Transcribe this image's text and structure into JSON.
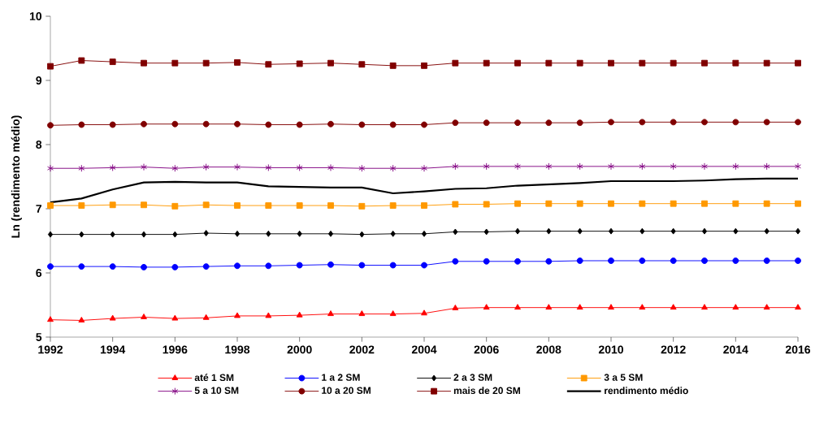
{
  "chart_data": {
    "type": "line",
    "ylabel": "Ln (rendimento médio)",
    "x": [
      1992,
      1993,
      1994,
      1995,
      1996,
      1997,
      1998,
      1999,
      2000,
      2001,
      2002,
      2003,
      2004,
      2005,
      2006,
      2007,
      2008,
      2009,
      2010,
      2011,
      2012,
      2013,
      2014,
      2015,
      2016
    ],
    "xlim": [
      1992,
      2016
    ],
    "xticks": [
      1992,
      1994,
      1996,
      1998,
      2000,
      2002,
      2004,
      2006,
      2008,
      2010,
      2012,
      2014,
      2016
    ],
    "ylim": [
      5,
      10
    ],
    "yticks": [
      5,
      6,
      7,
      8,
      9,
      10
    ],
    "grid": false,
    "legend": "bottom",
    "series": [
      {
        "name": "até 1 SM",
        "color": "#ff0000",
        "marker": "triangle",
        "values": [
          5.27,
          5.26,
          5.29,
          5.31,
          5.29,
          5.3,
          5.33,
          5.33,
          5.34,
          5.36,
          5.36,
          5.36,
          5.37,
          5.45,
          5.46,
          5.46,
          5.46,
          5.46,
          5.46,
          5.46,
          5.46,
          5.46,
          5.46,
          5.46,
          5.46
        ]
      },
      {
        "name": "1 a 2 SM",
        "color": "#0000ff",
        "marker": "circle",
        "values": [
          6.1,
          6.1,
          6.1,
          6.09,
          6.09,
          6.1,
          6.11,
          6.11,
          6.12,
          6.13,
          6.12,
          6.12,
          6.12,
          6.18,
          6.18,
          6.18,
          6.18,
          6.19,
          6.19,
          6.19,
          6.19,
          6.19,
          6.19,
          6.19,
          6.19
        ]
      },
      {
        "name": "2 a 3 SM",
        "color": "#000000",
        "marker": "diamond",
        "values": [
          6.6,
          6.6,
          6.6,
          6.6,
          6.6,
          6.62,
          6.61,
          6.61,
          6.61,
          6.61,
          6.6,
          6.61,
          6.61,
          6.64,
          6.64,
          6.65,
          6.65,
          6.65,
          6.65,
          6.65,
          6.65,
          6.65,
          6.65,
          6.65,
          6.65
        ]
      },
      {
        "name": "3 a 5 SM",
        "color": "#ff9900",
        "marker": "square",
        "values": [
          7.05,
          7.05,
          7.06,
          7.06,
          7.04,
          7.06,
          7.05,
          7.05,
          7.05,
          7.05,
          7.04,
          7.05,
          7.05,
          7.07,
          7.07,
          7.08,
          7.08,
          7.08,
          7.08,
          7.08,
          7.08,
          7.08,
          7.08,
          7.08,
          7.08
        ]
      },
      {
        "name": "5 a 10 SM",
        "color": "#800080",
        "marker": "cross",
        "values": [
          7.63,
          7.63,
          7.64,
          7.65,
          7.63,
          7.65,
          7.65,
          7.64,
          7.64,
          7.64,
          7.63,
          7.63,
          7.63,
          7.66,
          7.66,
          7.66,
          7.66,
          7.66,
          7.66,
          7.66,
          7.66,
          7.66,
          7.66,
          7.66,
          7.66
        ]
      },
      {
        "name": "10 a 20 SM",
        "color": "#800000",
        "marker": "circle",
        "values": [
          8.3,
          8.31,
          8.31,
          8.32,
          8.32,
          8.32,
          8.32,
          8.31,
          8.31,
          8.32,
          8.31,
          8.31,
          8.31,
          8.34,
          8.34,
          8.34,
          8.34,
          8.34,
          8.35,
          8.35,
          8.35,
          8.35,
          8.35,
          8.35,
          8.35
        ]
      },
      {
        "name": "mais de  20 SM",
        "color": "#800000",
        "marker": "square",
        "values": [
          9.22,
          9.31,
          9.29,
          9.27,
          9.27,
          9.27,
          9.28,
          9.25,
          9.26,
          9.27,
          9.25,
          9.23,
          9.23,
          9.27,
          9.27,
          9.27,
          9.27,
          9.27,
          9.27,
          9.27,
          9.27,
          9.27,
          9.27,
          9.27,
          9.27
        ]
      },
      {
        "name": "rendimento médio",
        "color": "#000000",
        "marker": "none",
        "values": [
          7.1,
          7.16,
          7.3,
          7.41,
          7.42,
          7.41,
          7.41,
          7.35,
          7.34,
          7.33,
          7.33,
          7.24,
          7.27,
          7.31,
          7.32,
          7.36,
          7.38,
          7.4,
          7.43,
          7.43,
          7.43,
          7.44,
          7.46,
          7.47,
          7.47
        ]
      }
    ]
  }
}
